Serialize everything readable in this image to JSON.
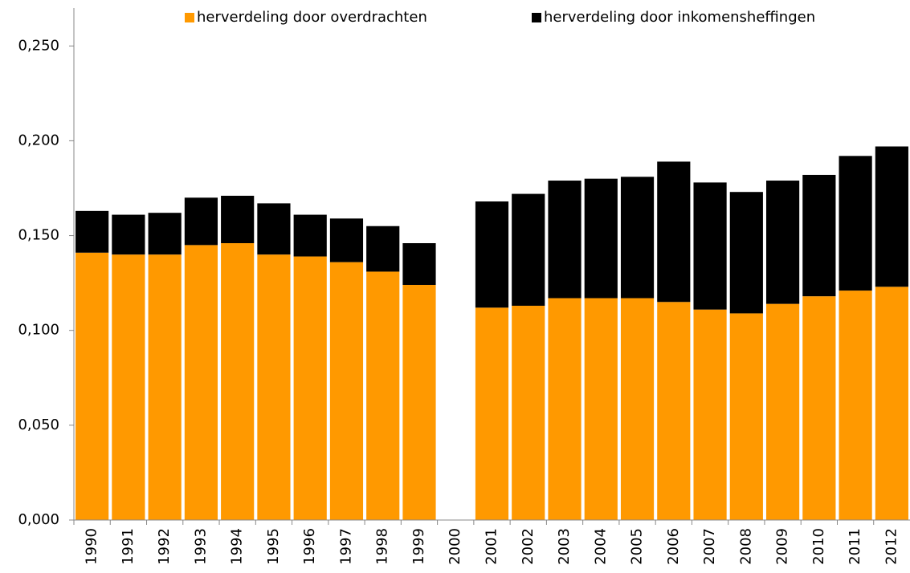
{
  "chart_data": {
    "type": "stacked_bar",
    "categories": [
      "1990",
      "1991",
      "1992",
      "1993",
      "1994",
      "1995",
      "1996",
      "1997",
      "1998",
      "1999",
      "2000",
      "2001",
      "2002",
      "2003",
      "2004",
      "2005",
      "2006",
      "2007",
      "2008",
      "2009",
      "2010",
      "2011",
      "2012"
    ],
    "series": [
      {
        "name": "herverdeling door overdrachten",
        "color": "#ff9900",
        "values": [
          0.141,
          0.14,
          0.14,
          0.145,
          0.146,
          0.14,
          0.139,
          0.136,
          0.131,
          0.124,
          null,
          0.112,
          0.113,
          0.117,
          0.117,
          0.117,
          0.115,
          0.111,
          0.109,
          0.114,
          0.118,
          0.121,
          0.123
        ]
      },
      {
        "name": "herverdeling door inkomensheffingen",
        "color": "#000000",
        "values": [
          0.022,
          0.021,
          0.022,
          0.025,
          0.025,
          0.027,
          0.022,
          0.023,
          0.024,
          0.022,
          null,
          0.056,
          0.059,
          0.062,
          0.063,
          0.064,
          0.074,
          0.067,
          0.064,
          0.065,
          0.064,
          0.071,
          0.074
        ]
      }
    ],
    "ylim": [
      0,
      0.27
    ],
    "yticks": [
      {
        "value": 0,
        "label": "0,000"
      },
      {
        "value": 0.05,
        "label": "0,050"
      },
      {
        "value": 0.1,
        "label": "0,100"
      },
      {
        "value": 0.15,
        "label": "0,150"
      },
      {
        "value": 0.2,
        "label": "0,200"
      },
      {
        "value": 0.25,
        "label": "0,250"
      }
    ],
    "legend": "top"
  }
}
